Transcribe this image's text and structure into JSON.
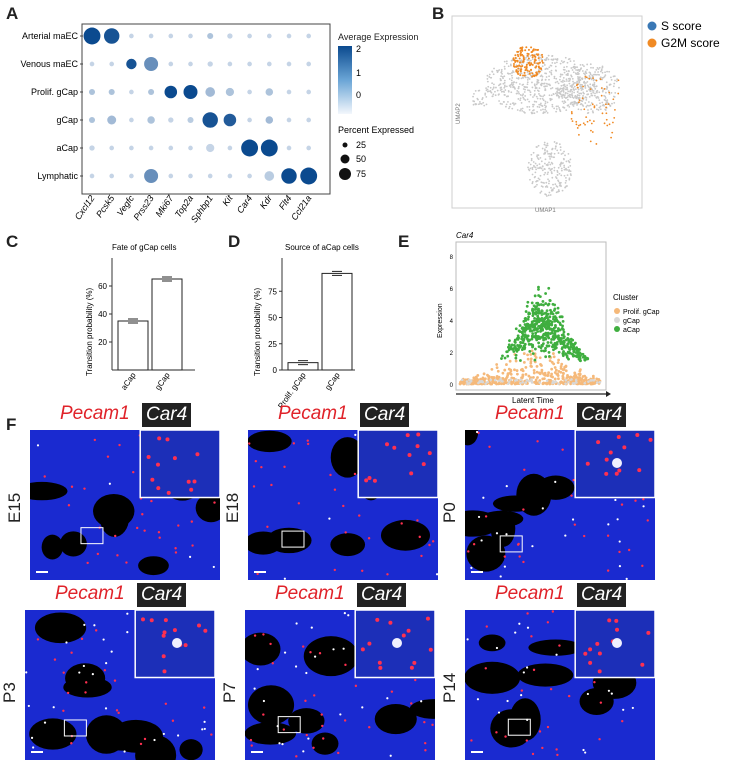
{
  "panels": {
    "A": {
      "label": "A",
      "rows": [
        "Arterial maEC",
        "Venous maEC",
        "Prolif. gCap",
        "gCap",
        "aCap",
        "Lymphatic"
      ],
      "genes": [
        "Cxcl12",
        "Pcsk5",
        "Vegfc",
        "Prss23",
        "Mki67",
        "Top2a",
        "Sphbp1",
        "Kit",
        "Car4",
        "Kdr",
        "Flt4",
        "Ccl21a"
      ],
      "legend_expr_title": "Average Expression",
      "legend_expr_ticks": [
        "2",
        "1",
        "0"
      ],
      "legend_pct_title": "Percent Expressed",
      "legend_pct_values": [
        "25",
        "50",
        "75"
      ]
    },
    "B": {
      "label": "B",
      "legend": [
        {
          "name": "S score",
          "color": "#3a78b5"
        },
        {
          "name": "G2M score",
          "color": "#f08a24"
        }
      ],
      "xlabel": "UMAP1",
      "ylabel": "UMAP2"
    },
    "C": {
      "label": "C",
      "title": "Fate of gCap cells",
      "ylabel": "Transition probability (%)",
      "yticks": [
        "20",
        "40",
        "60"
      ],
      "categories": [
        "aCap",
        "gCap"
      ],
      "values": [
        35,
        65
      ]
    },
    "D": {
      "label": "D",
      "title": "Source of aCap cells",
      "ylabel": "Transition probability (%)",
      "yticks": [
        "0",
        "25",
        "50",
        "75"
      ],
      "categories": [
        "Prolif. gCap",
        "gCap"
      ],
      "values": [
        7,
        92
      ]
    },
    "E": {
      "label": "E",
      "title": "Car4",
      "xlabel": "Latent Time",
      "ylabel": "Expression",
      "yticks": [
        "0",
        "2",
        "4",
        "6",
        "8"
      ],
      "legend_title": "Cluster",
      "legend": [
        {
          "name": "Prolif. gCap",
          "color": "#f5b97a"
        },
        {
          "name": "gCap",
          "color": "#d8d8d8"
        },
        {
          "name": "aCap",
          "color": "#3fae3f"
        }
      ]
    },
    "F": {
      "label": "F",
      "marker_red": "Pecam1",
      "marker_white": "Car4",
      "stages": [
        "E15",
        "E18",
        "P0",
        "P3",
        "P7",
        "P14"
      ]
    }
  },
  "chart_data": [
    {
      "type": "scatter",
      "title": "Car4",
      "xlabel": "Latent Time",
      "ylabel": "Expression",
      "ylim": [
        0,
        9
      ],
      "series": [
        {
          "name": "Prolif. gCap",
          "values": []
        },
        {
          "name": "gCap",
          "values": []
        },
        {
          "name": "aCap",
          "values": []
        }
      ]
    },
    {
      "type": "bar",
      "title": "Fate of gCap cells",
      "categories": [
        "aCap",
        "gCap"
      ],
      "values": [
        35,
        65
      ],
      "ylabel": "Transition probability (%)"
    },
    {
      "type": "bar",
      "title": "Source of aCap cells",
      "categories": [
        "Prolif. gCap",
        "gCap"
      ],
      "values": [
        7,
        92
      ],
      "ylabel": "Transition probability (%)"
    }
  ]
}
